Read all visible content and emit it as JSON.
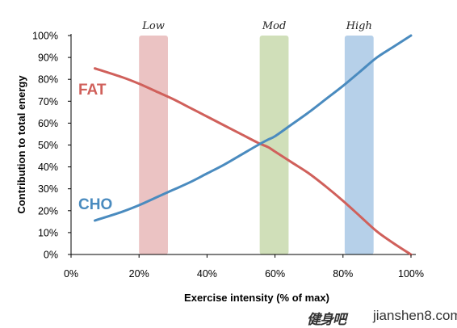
{
  "chart_data": {
    "type": "line",
    "title": "",
    "xlabel": "Exercise intensity (% of max)",
    "ylabel": "Contribution to total energy",
    "xlim": [
      0,
      100
    ],
    "ylim": [
      0,
      100
    ],
    "x_ticks": [
      "0%",
      "20%",
      "40%",
      "60%",
      "80%",
      "100%"
    ],
    "y_ticks": [
      "0%",
      "10%",
      "20%",
      "30%",
      "40%",
      "50%",
      "60%",
      "70%",
      "80%",
      "90%",
      "100%"
    ],
    "grid": false,
    "series": [
      {
        "name": "FAT",
        "color": "#d0605b",
        "x": [
          7,
          15,
          20,
          25,
          30,
          35,
          40,
          45,
          50,
          55,
          58,
          60,
          65,
          70,
          75,
          80,
          85,
          90,
          95,
          100
        ],
        "y": [
          85,
          81,
          78,
          74.5,
          71,
          67,
          63,
          59,
          55,
          51,
          49,
          47,
          42,
          37,
          31,
          24.5,
          17.5,
          10.5,
          5,
          0
        ]
      },
      {
        "name": "CHO",
        "color": "#4a8bbf",
        "x": [
          7,
          15,
          20,
          25,
          30,
          35,
          40,
          45,
          50,
          55,
          58,
          60,
          65,
          70,
          75,
          80,
          85,
          90,
          95,
          100
        ],
        "y": [
          15.5,
          19.5,
          22.5,
          26,
          29.5,
          33,
          37,
          41,
          45.5,
          50,
          52.5,
          54,
          59.5,
          65,
          71,
          77,
          83.5,
          90,
          95,
          100
        ]
      }
    ],
    "bands": [
      {
        "label": "Low",
        "from": 20,
        "to": 28.5,
        "color": "#e8b9b9"
      },
      {
        "label": "Mod",
        "from": 55.5,
        "to": 64,
        "color": "#c8d9ad"
      },
      {
        "label": "High",
        "from": 80.5,
        "to": 89,
        "color": "#a9c8e5"
      }
    ]
  },
  "watermark": {
    "logo": "健身吧",
    "text": "jianshen8.com"
  }
}
